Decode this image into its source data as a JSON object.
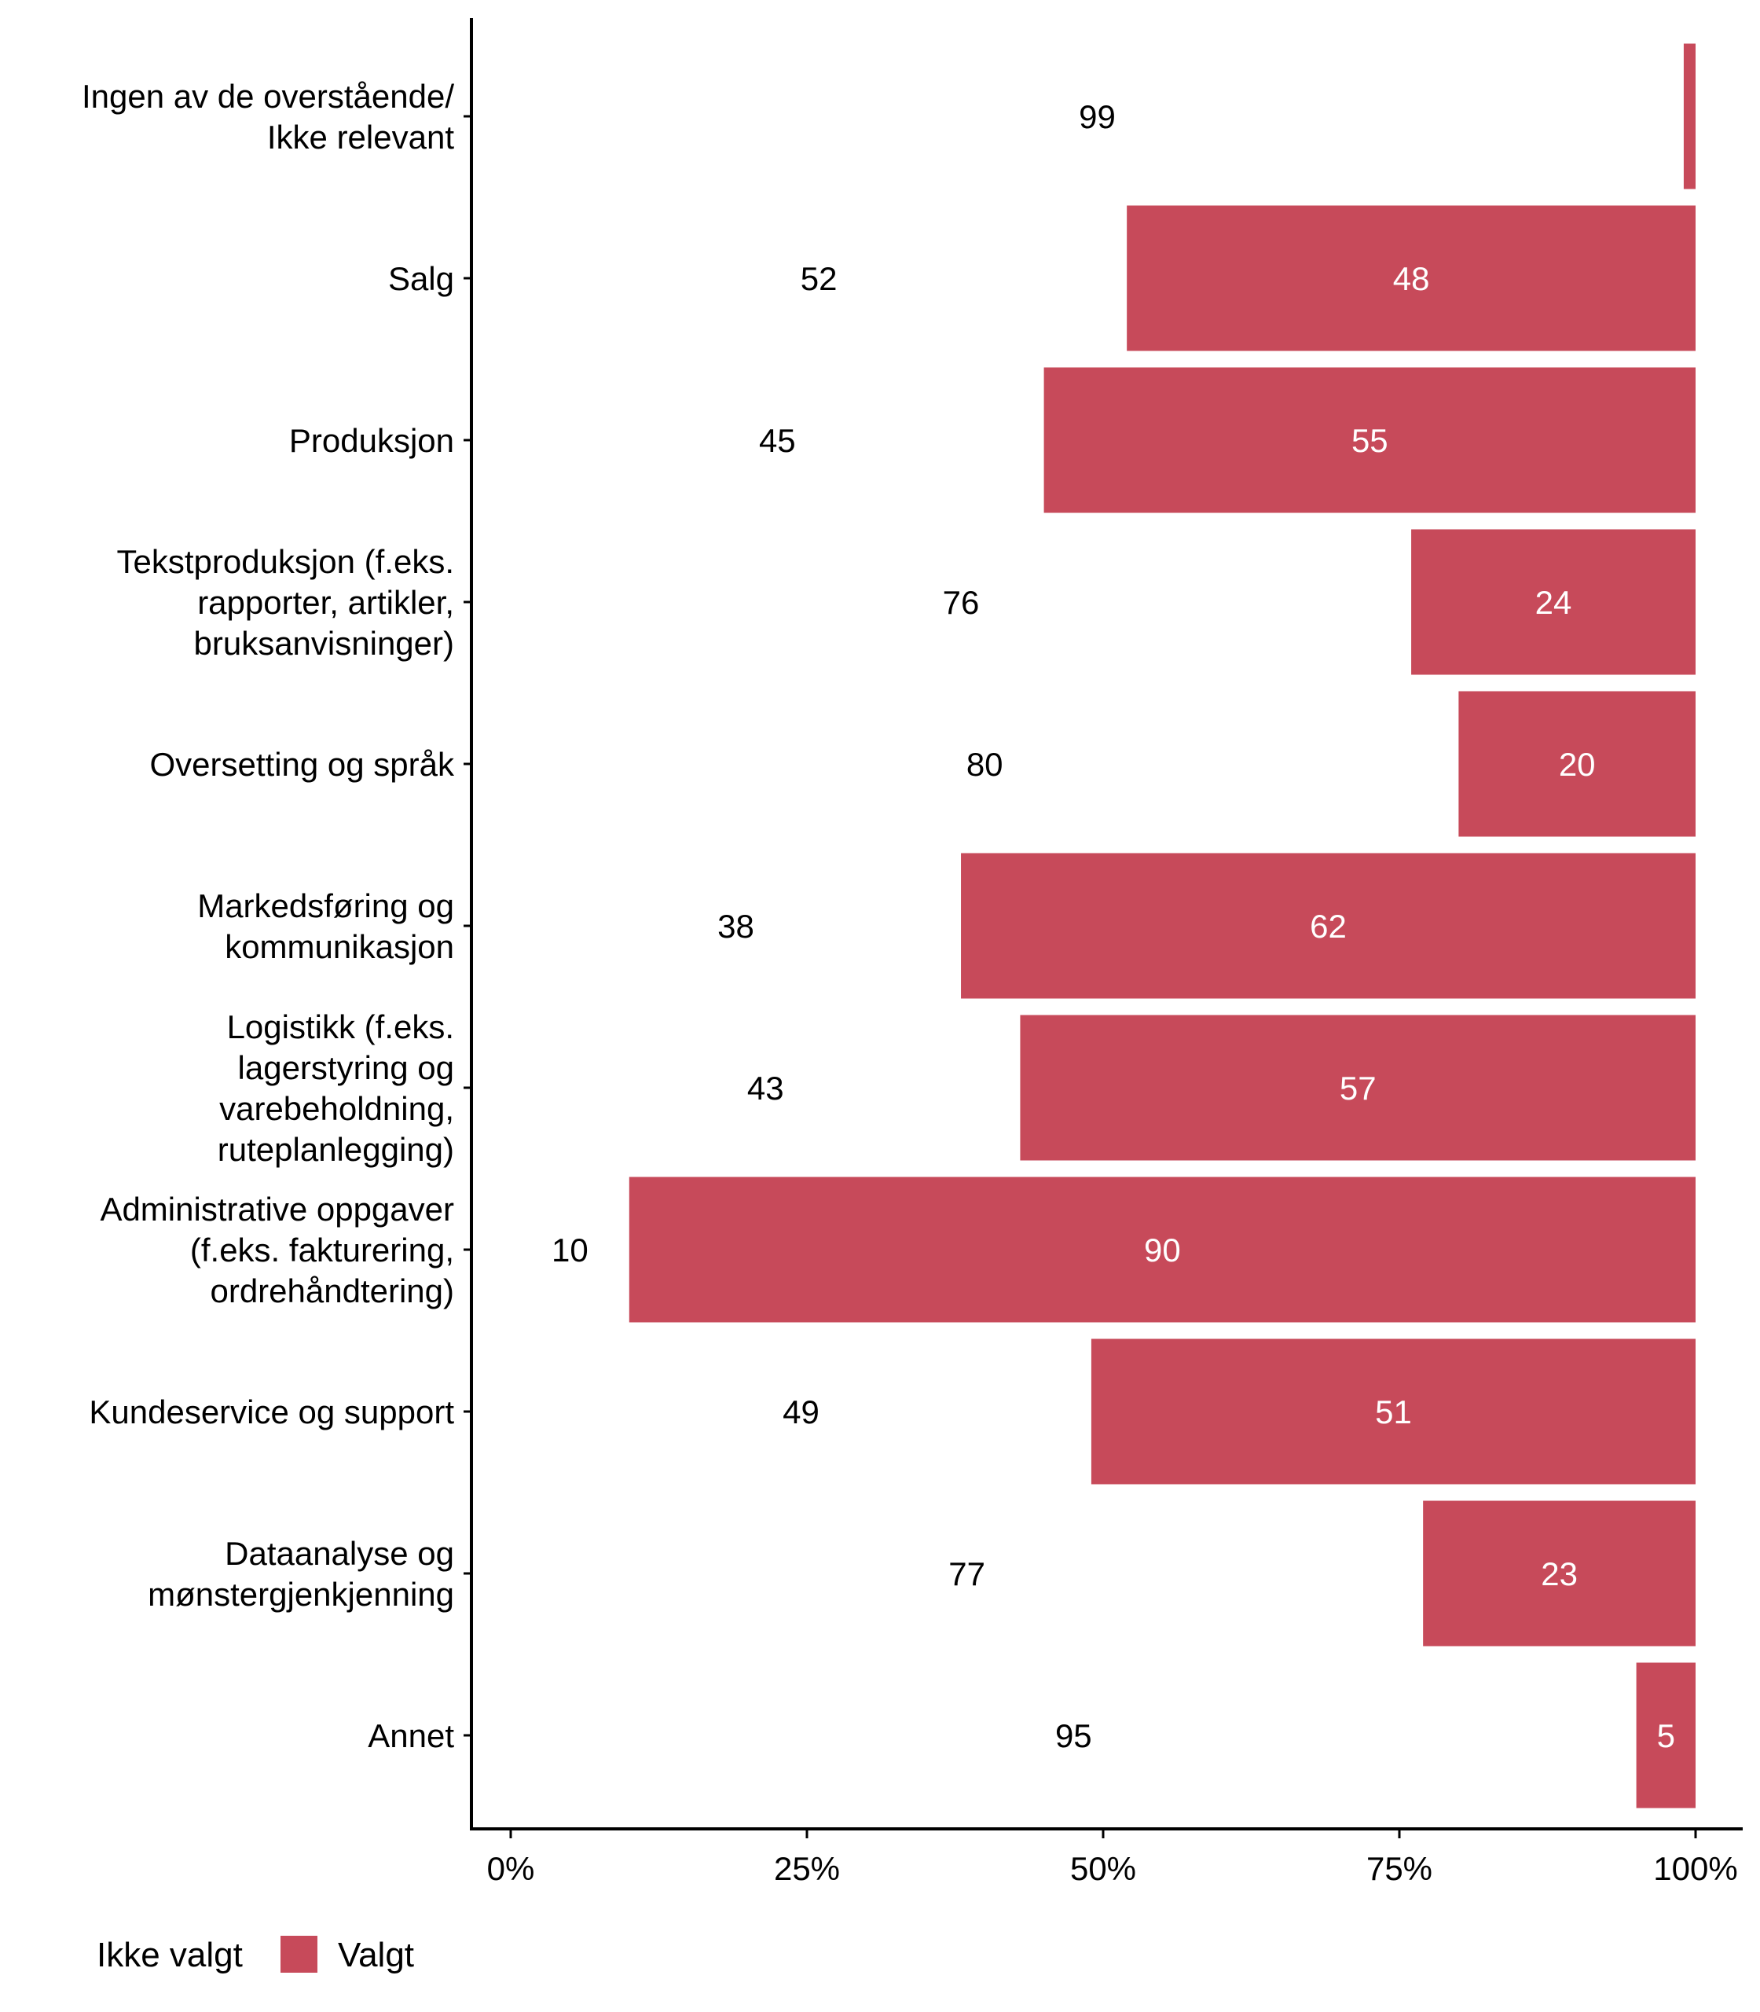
{
  "chart_data": {
    "type": "bar",
    "orientation": "horizontal",
    "stacked": true,
    "title": "",
    "xlabel": "",
    "ylabel": "",
    "xlim": [
      0,
      100
    ],
    "x_ticks": [
      "0%",
      "25%",
      "50%",
      "75%",
      "100%"
    ],
    "x_tick_values": [
      0,
      25,
      50,
      75,
      100
    ],
    "grid": false,
    "legend_position": "bottom-left",
    "categories": [
      [
        "Ingen av de overstående/",
        "Ikke relevant"
      ],
      [
        "Salg"
      ],
      [
        "Produksjon"
      ],
      [
        "Tekstproduksjon (f.eks.",
        "rapporter, artikler,",
        "bruksanvisninger)"
      ],
      [
        "Oversetting og språk"
      ],
      [
        "Markedsføring og",
        "kommunikasjon"
      ],
      [
        "Logistikk (f.eks.",
        "lagerstyring og",
        "varebeholdning,",
        "ruteplanlegging)"
      ],
      [
        "Administrative oppgaver",
        "(f.eks. fakturering,",
        "ordrehåndtering)"
      ],
      [
        "Kundeservice og support"
      ],
      [
        "Dataanalyse og",
        "mønstergjenkjenning"
      ],
      [
        "Annet"
      ]
    ],
    "series": [
      {
        "name": "Ikke valgt",
        "color": "#ffffff",
        "label_color": "#000000",
        "values": [
          99,
          52,
          45,
          76,
          80,
          38,
          43,
          10,
          49,
          77,
          95
        ]
      },
      {
        "name": "Valgt",
        "color": "#c74a5a",
        "label_color": "#ffffff",
        "values": [
          1,
          48,
          55,
          24,
          20,
          62,
          57,
          90,
          51,
          23,
          5
        ]
      }
    ],
    "value_labels": {
      "Ikke valgt": [
        "99",
        "52",
        "45",
        "76",
        "80",
        "38",
        "43",
        "10",
        "49",
        "77",
        "95"
      ],
      "Valgt": [
        "",
        "48",
        "55",
        "24",
        "20",
        "62",
        "57",
        "90",
        "51",
        "23",
        "5"
      ]
    }
  },
  "legend": {
    "items": [
      {
        "label": "Ikke valgt",
        "color": "#ffffff"
      },
      {
        "label": "Valgt",
        "color": "#c74a5a"
      }
    ]
  }
}
